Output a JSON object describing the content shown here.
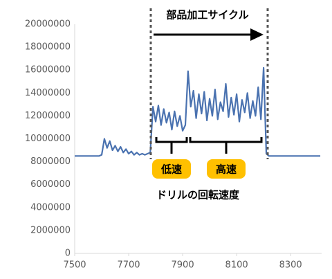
{
  "chart_data": {
    "type": "line",
    "annotations": [
      "部品加工サイクル",
      "低速",
      "高速",
      "ドリルの回転速度"
    ],
    "x": [
      7500,
      7510,
      7520,
      7530,
      7540,
      7550,
      7560,
      7570,
      7580,
      7590,
      7600,
      7610,
      7620,
      7630,
      7640,
      7650,
      7660,
      7670,
      7680,
      7690,
      7700,
      7710,
      7720,
      7730,
      7740,
      7750,
      7760,
      7770,
      7780,
      7790,
      7800,
      7810,
      7820,
      7830,
      7840,
      7850,
      7860,
      7870,
      7880,
      7890,
      7900,
      7910,
      7920,
      7930,
      7940,
      7950,
      7960,
      7970,
      7980,
      7990,
      8000,
      8010,
      8020,
      8030,
      8040,
      8050,
      8060,
      8070,
      8080,
      8090,
      8100,
      8110,
      8120,
      8130,
      8140,
      8150,
      8160,
      8170,
      8180,
      8190,
      8200,
      8210,
      8220,
      8230,
      8240,
      8250,
      8260,
      8270,
      8280,
      8290,
      8300,
      8310,
      8320,
      8330,
      8340,
      8350,
      8360,
      8370,
      8380,
      8390,
      8400,
      8410
    ],
    "series": [
      {
        "color": "#4a72b0",
        "values": [
          8500000,
          8500000,
          8500000,
          8500000,
          8500000,
          8500000,
          8500000,
          8500000,
          8500000,
          8500000,
          8600000,
          10000000,
          9200000,
          9800000,
          9000000,
          9400000,
          8900000,
          9300000,
          8800000,
          9100000,
          8700000,
          8900000,
          8600000,
          8800000,
          8600000,
          8700000,
          8600000,
          8700000,
          8800000,
          12800000,
          11500000,
          12900000,
          11200000,
          12600000,
          11400000,
          12300000,
          10800000,
          12400000,
          11100000,
          12000000,
          10700000,
          11200000,
          15900000,
          12800000,
          14200000,
          11800000,
          13900000,
          12200000,
          14100000,
          11600000,
          13500000,
          12000000,
          14300000,
          11700000,
          13200000,
          12400000,
          14800000,
          11900000,
          13600000,
          12100000,
          13900000,
          11500000,
          13400000,
          12300000,
          14000000,
          11800000,
          13300000,
          12000000,
          14500000,
          11700000,
          16200000,
          8700000,
          8500000,
          8500000,
          8500000,
          8500000,
          8500000,
          8500000,
          8500000,
          8500000,
          8500000,
          8500000,
          8500000,
          8500000,
          8500000,
          8500000,
          8500000,
          8500000,
          8500000,
          8500000,
          8500000,
          8500000
        ]
      }
    ],
    "xlim": [
      7500,
      8415
    ],
    "xticks": [
      7500,
      7700,
      7900,
      8100,
      8300
    ],
    "ylim": [
      0,
      20000000
    ],
    "yticks": [
      0,
      2000000,
      4000000,
      6000000,
      8000000,
      10000000,
      12000000,
      14000000,
      16000000,
      18000000,
      20000000
    ],
    "grid": false
  }
}
